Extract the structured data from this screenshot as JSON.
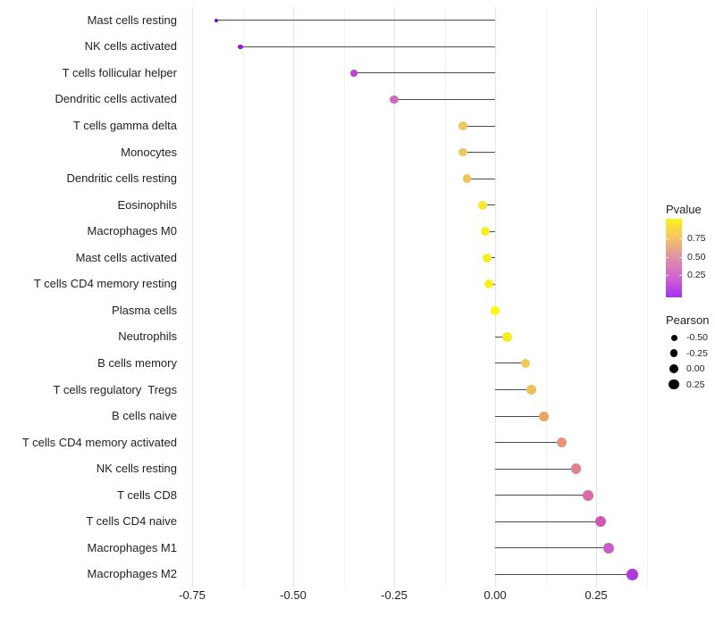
{
  "chart_data": {
    "type": "scatter",
    "variant": "lollipop",
    "title": "",
    "xlabel": "",
    "ylabel": "",
    "xlim": [
      -0.772,
      0.383
    ],
    "x_ticks": [
      {
        "label": "-0.75",
        "value": -0.75
      },
      {
        "label": "-0.50",
        "value": -0.5
      },
      {
        "label": "-0.25",
        "value": -0.25
      },
      {
        "label": "0.00",
        "value": 0.0
      },
      {
        "label": "0.25",
        "value": 0.25
      }
    ],
    "grid": {
      "major": [
        -0.75,
        -0.5,
        -0.25,
        0.0,
        0.25
      ],
      "minor": [
        -0.625,
        -0.375,
        -0.125,
        0.125,
        0.375
      ]
    },
    "points": [
      {
        "label": "Mast cells resting",
        "pearson": -0.69,
        "pvalue_est": 0.01,
        "color": "#6b10c8",
        "size": 4.0
      },
      {
        "label": "NK cells activated",
        "pearson": -0.63,
        "pvalue_est": 0.05,
        "color": "#8b1bd5",
        "size": 5.5
      },
      {
        "label": "T cells follicular helper",
        "pearson": -0.35,
        "pvalue_est": 0.2,
        "color": "#b944cf",
        "size": 8.5
      },
      {
        "label": "Dendritic cells activated",
        "pearson": -0.25,
        "pvalue_est": 0.35,
        "color": "#cf6cb5",
        "size": 9.3
      },
      {
        "label": "T cells gamma delta",
        "pearson": -0.08,
        "pvalue_est": 0.75,
        "color": "#eec75e",
        "size": 9.6
      },
      {
        "label": "Monocytes",
        "pearson": -0.08,
        "pvalue_est": 0.75,
        "color": "#eec75e",
        "size": 9.6
      },
      {
        "label": "Dendritic cells resting",
        "pearson": -0.07,
        "pvalue_est": 0.73,
        "color": "#edc55c",
        "size": 9.7
      },
      {
        "label": "Eosinophils",
        "pearson": -0.03,
        "pvalue_est": 0.88,
        "color": "#f6e930",
        "size": 9.9
      },
      {
        "label": "Macrophages M0",
        "pearson": -0.025,
        "pvalue_est": 0.9,
        "color": "#f7ec26",
        "size": 9.9
      },
      {
        "label": "Mast cells activated",
        "pearson": -0.02,
        "pvalue_est": 0.9,
        "color": "#f8ed22",
        "size": 10.0
      },
      {
        "label": "T cells CD4 memory resting",
        "pearson": -0.015,
        "pvalue_est": 0.92,
        "color": "#f9ef1d",
        "size": 10.0
      },
      {
        "label": "Plasma cells",
        "pearson": 0.0,
        "pvalue_est": 0.99,
        "color": "#fdf805",
        "size": 10.2
      },
      {
        "label": "Neutrophils",
        "pearson": 0.03,
        "pvalue_est": 0.9,
        "color": "#f7eb28",
        "size": 10.4
      },
      {
        "label": "B cells memory",
        "pearson": 0.075,
        "pvalue_est": 0.75,
        "color": "#eeca5e",
        "size": 10.8
      },
      {
        "label": "T cells regulatory  Tregs",
        "pearson": 0.09,
        "pvalue_est": 0.7,
        "color": "#ecc159",
        "size": 10.9
      },
      {
        "label": "B cells naive",
        "pearson": 0.12,
        "pvalue_est": 0.6,
        "color": "#eaa661",
        "size": 11.1
      },
      {
        "label": "T cells CD4 memory activated",
        "pearson": 0.165,
        "pvalue_est": 0.5,
        "color": "#e9937a",
        "size": 11.4
      },
      {
        "label": "NK cells resting",
        "pearson": 0.2,
        "pvalue_est": 0.44,
        "color": "#e08390",
        "size": 11.6
      },
      {
        "label": "T cells CD8",
        "pearson": 0.23,
        "pvalue_est": 0.34,
        "color": "#d76ca7",
        "size": 11.8
      },
      {
        "label": "T cells CD4 naive",
        "pearson": 0.26,
        "pvalue_est": 0.28,
        "color": "#cb5ab6",
        "size": 12.0
      },
      {
        "label": "Macrophages M1",
        "pearson": 0.28,
        "pvalue_est": 0.25,
        "color": "#c55ec7",
        "size": 12.1
      },
      {
        "label": "Macrophages M2",
        "pearson": 0.34,
        "pvalue_est": 0.12,
        "color": "#b13add",
        "size": 12.5
      }
    ],
    "legends": {
      "pvalue": {
        "title": "Pvalue",
        "gradient_colors": [
          "#fbf116",
          "#f3c267",
          "#e08ea6",
          "#cf64d2",
          "#a92ff2"
        ],
        "ticks": [
          {
            "label": "0.75",
            "pos": 0.25
          },
          {
            "label": "0.50",
            "pos": 0.483
          },
          {
            "label": "0.25",
            "pos": 0.716
          }
        ]
      },
      "pearson": {
        "title": "Pearson",
        "entries": [
          {
            "label": "-0.50",
            "size": 7.0
          },
          {
            "label": "-0.25",
            "size": 8.7
          },
          {
            "label": "0.00",
            "size": 10.0
          },
          {
            "label": "0.25",
            "size": 11.3
          }
        ]
      }
    }
  }
}
